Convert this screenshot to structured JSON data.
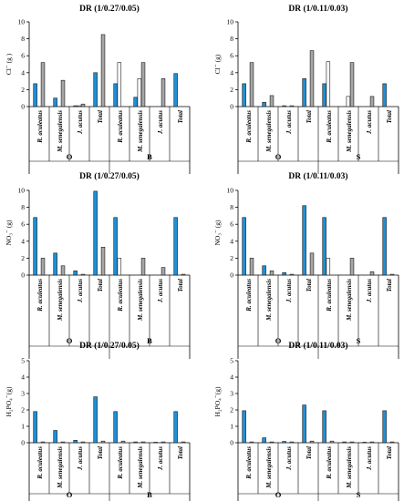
{
  "chart_data": [
    {
      "type": "bar",
      "title": "DR (1/0.27/0.05)",
      "ylabel": "Cl⁻ (g )",
      "ylim": [
        0,
        10
      ],
      "yticks": [
        0,
        2,
        4,
        6,
        8,
        10
      ],
      "categories": [
        "R. aculeatus",
        "M. senegalensis",
        "J. acutus",
        "Total",
        "R. aculeatus",
        "M. senegalensis",
        "J. acutus",
        "Total"
      ],
      "groups": [
        "O",
        "B"
      ],
      "series": [
        {
          "values": [
            2.7,
            1.0,
            0.1,
            4.0,
            2.7,
            1.1,
            0.0,
            3.9
          ],
          "color": "#1f8fd6"
        },
        {
          "values": [
            0.0,
            0.0,
            0.1,
            0.0,
            5.2,
            3.3,
            0.0,
            0.0
          ],
          "color": "#ffffff"
        },
        {
          "values": [
            5.2,
            3.1,
            0.3,
            8.5,
            0.0,
            5.2,
            3.3,
            0.0
          ],
          "color": "#a6a6a6"
        }
      ]
    },
    {
      "type": "bar",
      "title": "DR (1/0.11/0.03)",
      "ylabel": "Cl⁻ (g)",
      "ylim": [
        0,
        10
      ],
      "yticks": [
        0,
        2,
        4,
        6,
        8,
        10
      ],
      "categories": [
        "R. aculeatus",
        "M. senegalensis",
        "J. acutus",
        "Total",
        "R. aculeatus",
        "M. senegalensis",
        "J. acutus",
        "Total"
      ],
      "groups": [
        "O",
        "S"
      ],
      "series": [
        {
          "values": [
            2.7,
            0.5,
            0.1,
            3.3,
            2.7,
            0.0,
            0.0,
            2.7
          ],
          "color": "#1f8fd6"
        },
        {
          "values": [
            0.0,
            0.0,
            0.0,
            0.0,
            5.3,
            1.2,
            0.0,
            0.0
          ],
          "color": "#ffffff"
        },
        {
          "values": [
            5.2,
            1.3,
            0.1,
            6.6,
            0.0,
            5.2,
            1.2,
            0.0
          ],
          "color": "#a6a6a6"
        }
      ]
    },
    {
      "type": "bar",
      "title": "DR (1/0.27/0.05)",
      "ylabel": "NO₃⁻ (g)",
      "ylim": [
        0,
        10
      ],
      "yticks": [
        0,
        2,
        4,
        6,
        8,
        10
      ],
      "categories": [
        "R. aculeatus",
        "M. senegalensis",
        "J. acutus",
        "Total",
        "R. aculeatus",
        "M. senegalensis",
        "J. acutus",
        "Total"
      ],
      "groups": [
        "O",
        "B"
      ],
      "series": [
        {
          "values": [
            6.8,
            2.6,
            0.5,
            9.9,
            6.8,
            0.0,
            0.0,
            6.8
          ],
          "color": "#1f8fd6"
        },
        {
          "values": [
            0.0,
            0.0,
            0.0,
            0.0,
            2.0,
            0.0,
            0.0,
            0.0
          ],
          "color": "#ffffff"
        },
        {
          "values": [
            2.0,
            1.1,
            0.1,
            3.3,
            0.0,
            2.0,
            0.9,
            0.1
          ],
          "color": "#a6a6a6"
        }
      ]
    },
    {
      "type": "bar",
      "title": "DR (1/0.11/0.03)",
      "ylabel": "NO₃⁻ (g)",
      "ylim": [
        0,
        10
      ],
      "yticks": [
        0,
        2,
        4,
        6,
        8,
        10
      ],
      "categories": [
        "R. aculeatus",
        "M. senegalensis",
        "J. acutus",
        "Total",
        "R. aculeatus",
        "M. senegalensis",
        "J. acutus",
        "Total"
      ],
      "groups": [
        "O",
        "S"
      ],
      "series": [
        {
          "values": [
            6.8,
            1.1,
            0.3,
            8.2,
            6.8,
            0.0,
            0.0,
            6.8
          ],
          "color": "#1f8fd6"
        },
        {
          "values": [
            0.0,
            0.0,
            0.0,
            0.0,
            2.0,
            0.0,
            0.0,
            0.0
          ],
          "color": "#ffffff"
        },
        {
          "values": [
            2.0,
            0.5,
            0.1,
            2.6,
            0.0,
            2.0,
            0.4,
            0.1
          ],
          "color": "#a6a6a6"
        }
      ]
    },
    {
      "type": "bar",
      "title": "DR (1/0.27/0.05)",
      "ylabel": "H₂PO₄⁻(g)",
      "ylim": [
        0,
        5
      ],
      "yticks": [
        0,
        1,
        2,
        3,
        4,
        5
      ],
      "categories": [
        "R. aculeatus",
        "M. senegalensis",
        "J. acutus",
        "Total",
        "R. aculeatus",
        "M. senegalensis",
        "J. acutus",
        "Total"
      ],
      "groups": [
        "O",
        "B"
      ],
      "series": [
        {
          "values": [
            1.9,
            0.75,
            0.15,
            2.8,
            1.9,
            0.05,
            0.03,
            1.9
          ],
          "color": "#1f8fd6"
        },
        {
          "values": [
            0.0,
            0.0,
            0.0,
            0.0,
            0.0,
            0.0,
            0.0,
            0.0
          ],
          "color": "#ffffff"
        },
        {
          "values": [
            0.05,
            0.05,
            0.05,
            0.1,
            0.1,
            0.05,
            0.05,
            0.05
          ],
          "color": "#a6a6a6"
        }
      ]
    },
    {
      "type": "bar",
      "title": "DR (1/0.11/0.03)",
      "ylabel": "H₂PO₄⁻(g)",
      "ylim": [
        0,
        5
      ],
      "yticks": [
        0,
        1,
        2,
        3,
        4,
        5
      ],
      "categories": [
        "R. aculeatus",
        "M. senegalensis",
        "J. acutus",
        "Total",
        "R. aculeatus",
        "M. senegalensis",
        "J. acutus",
        "Total"
      ],
      "groups": [
        "O",
        "S"
      ],
      "series": [
        {
          "values": [
            1.95,
            0.3,
            0.08,
            2.3,
            1.95,
            0.05,
            0.03,
            1.95
          ],
          "color": "#1f8fd6"
        },
        {
          "values": [
            0.0,
            0.0,
            0.0,
            0.0,
            0.0,
            0.0,
            0.0,
            0.0
          ],
          "color": "#ffffff"
        },
        {
          "values": [
            0.05,
            0.05,
            0.05,
            0.1,
            0.1,
            0.05,
            0.05,
            0.05
          ],
          "color": "#a6a6a6"
        }
      ]
    }
  ]
}
